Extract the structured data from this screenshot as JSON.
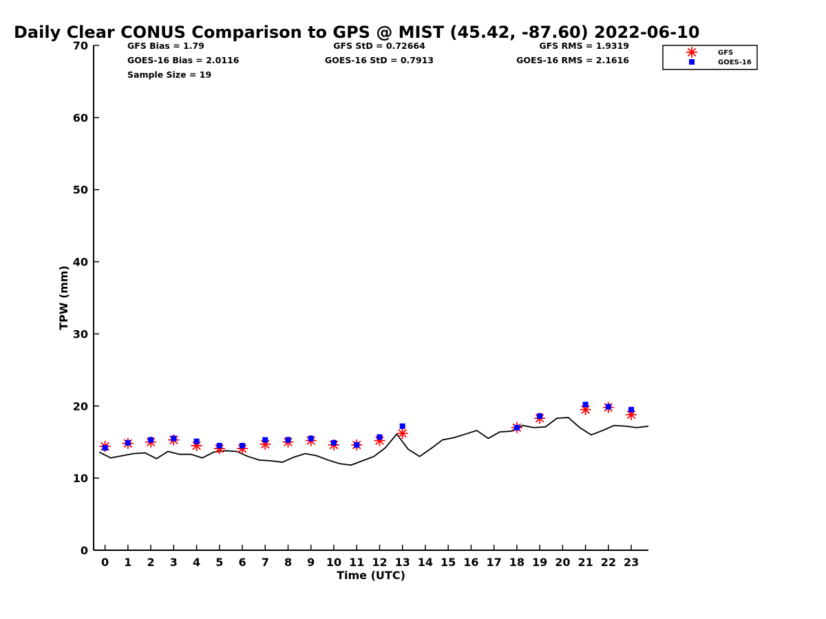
{
  "chart_data": {
    "type": "scatter",
    "title": "Daily Clear CONUS Comparison to GPS @ MIST (45.42, -87.60) 2022-06-10",
    "xlabel": "Time (UTC)",
    "ylabel": "TPW (mm)",
    "xlim": [
      -0.5,
      23.75
    ],
    "ylim": [
      0,
      70
    ],
    "xticks": [
      0,
      1,
      2,
      3,
      4,
      5,
      6,
      7,
      8,
      9,
      10,
      11,
      12,
      13,
      14,
      15,
      16,
      17,
      18,
      19,
      20,
      21,
      22,
      23
    ],
    "yticks": [
      0,
      10,
      20,
      30,
      40,
      50,
      60,
      70
    ],
    "grid": false,
    "legend_position": "top-right",
    "stats": [
      {
        "text": "GFS Bias = 1.79",
        "col": 0,
        "row": 0
      },
      {
        "text": "GFS StD = 0.72664",
        "col": 1,
        "row": 0
      },
      {
        "text": "GFS RMS = 1.9319",
        "col": 2,
        "row": 0
      },
      {
        "text": "GOES-16 Bias = 2.0116",
        "col": 0,
        "row": 1
      },
      {
        "text": "GOES-16 StD = 0.7913",
        "col": 1,
        "row": 1
      },
      {
        "text": "GOES-16 RMS = 2.1616",
        "col": 2,
        "row": 1
      },
      {
        "text": "Sample Size = 19",
        "col": 0,
        "row": 2
      }
    ],
    "series": [
      {
        "name": "GPS",
        "kind": "line",
        "color": "#000000",
        "x": [
          -0.25,
          0.25,
          0.75,
          1.25,
          1.75,
          2.25,
          2.75,
          3.25,
          3.75,
          4.25,
          4.75,
          5.25,
          5.75,
          6.25,
          6.75,
          7.25,
          7.75,
          8.25,
          8.75,
          9.25,
          9.75,
          10.25,
          10.75,
          11.25,
          11.75,
          12.25,
          12.75,
          13.25,
          13.75,
          14.25,
          14.75,
          15.25,
          15.75,
          16.25,
          16.75,
          17.25,
          17.75,
          18.25,
          18.75,
          19.25,
          19.75,
          20.25,
          20.75,
          21.25,
          21.75,
          22.25,
          22.75,
          23.25,
          23.75
        ],
        "y": [
          13.6,
          12.8,
          13.1,
          13.4,
          13.5,
          12.7,
          13.7,
          13.3,
          13.3,
          12.8,
          13.6,
          13.8,
          13.7,
          13.0,
          12.5,
          12.4,
          12.2,
          12.9,
          13.4,
          13.1,
          12.5,
          12.0,
          11.8,
          12.4,
          13.0,
          14.2,
          16.1,
          14.0,
          13.0,
          14.1,
          15.3,
          15.6,
          16.1,
          16.6,
          15.5,
          16.4,
          16.5,
          17.3,
          17.0,
          17.1,
          18.3,
          18.4,
          17.0,
          16.0,
          16.6,
          17.3,
          17.2,
          17.0,
          17.2
        ]
      },
      {
        "name": "GFS",
        "kind": "marker",
        "marker": "asterisk",
        "color": "#ff0000",
        "x": [
          0,
          1,
          2,
          3,
          4,
          5,
          6,
          7,
          8,
          9,
          10,
          11,
          12,
          13,
          18,
          19,
          21,
          22,
          23
        ],
        "y": [
          14.4,
          14.8,
          15.0,
          15.3,
          14.5,
          14.1,
          14.1,
          14.7,
          15.0,
          15.2,
          14.6,
          14.6,
          15.2,
          16.2,
          17.0,
          18.3,
          19.5,
          19.8,
          18.8
        ]
      },
      {
        "name": "GOES-16",
        "kind": "marker",
        "marker": "square",
        "color": "#0000ff",
        "x": [
          0,
          1,
          2,
          3,
          4,
          5,
          6,
          7,
          8,
          9,
          10,
          11,
          12,
          13,
          18,
          19,
          21,
          22,
          23
        ],
        "y": [
          14.2,
          14.9,
          15.3,
          15.5,
          15.1,
          14.5,
          14.5,
          15.3,
          15.3,
          15.5,
          14.9,
          14.6,
          15.7,
          17.2,
          17.0,
          18.6,
          20.2,
          19.9,
          19.5
        ]
      }
    ],
    "legend": [
      {
        "name": "GFS",
        "marker": "asterisk",
        "color": "#ff0000"
      },
      {
        "name": "GOES-16",
        "marker": "square",
        "color": "#0000ff"
      }
    ]
  }
}
